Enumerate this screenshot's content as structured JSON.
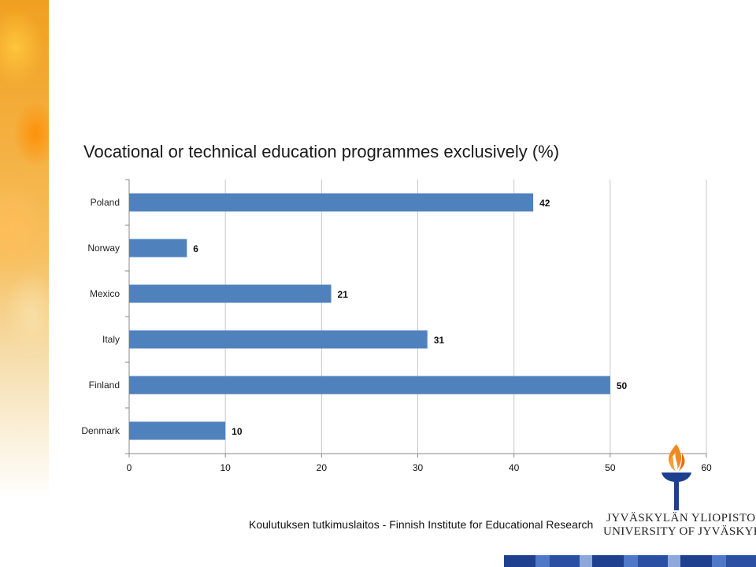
{
  "slide": {
    "footer": "Koulutuksen tutkimuslaitos - Finnish Institute for Educational Research",
    "university_fi": "JYVÄSKYLÄN YLIOPISTO",
    "university_en": "UNIVERSITY OF JYVÄSKYLÄ",
    "accent_orange": "#f08a20",
    "brand_blue": "#1f3f8f"
  },
  "chart_data": {
    "type": "bar",
    "orientation": "horizontal",
    "title": "Vocational or technical education programmes exclusively (%)",
    "categories": [
      "Poland",
      "Norway",
      "Mexico",
      "Italy",
      "Finland",
      "Denmark"
    ],
    "values": [
      42,
      6,
      21,
      31,
      50,
      10
    ],
    "xlim": [
      0,
      60
    ],
    "xticks": [
      0,
      10,
      20,
      30,
      40,
      50,
      60
    ],
    "grid": true,
    "bar_color": "#4f81bd",
    "data_labels": true,
    "legend": "none"
  }
}
